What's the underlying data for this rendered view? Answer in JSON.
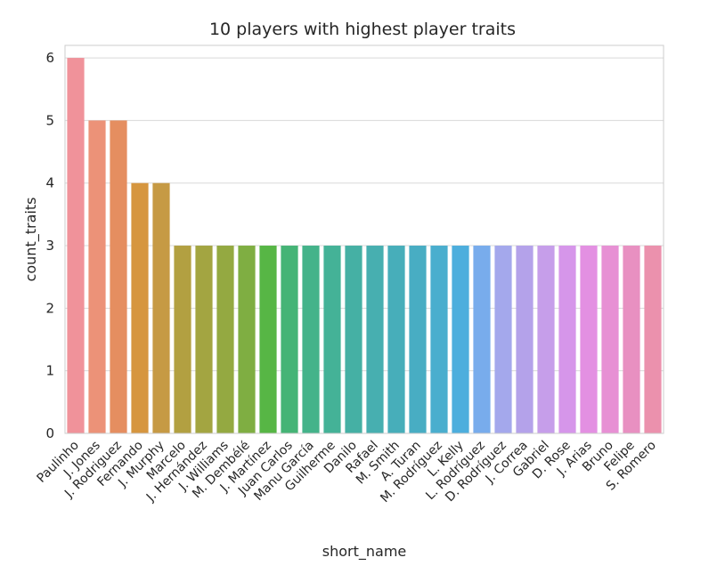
{
  "chart_data": {
    "type": "bar",
    "title": "10 players with highest player traits",
    "xlabel": "short_name",
    "ylabel": "count_traits",
    "ylim": [
      0,
      6.2
    ],
    "yticks": [
      0,
      1,
      2,
      3,
      4,
      5,
      6
    ],
    "grid": "horizontal",
    "categories": [
      "Paulinho",
      "J. Jones",
      "J. Rodriguez",
      "Fernando",
      "J. Murphy",
      "Marcelo",
      "J. Hernández",
      "J. Williams",
      "M. Dembélé",
      "J. Martínez",
      "Juan Carlos",
      "Manu García",
      "Guilherme",
      "Danilo",
      "Rafael",
      "M. Smith",
      "A. Turan",
      "M. Rodríguez",
      "L. Kelly",
      "L. Rodríguez",
      "D. Rodríguez",
      "J. Correa",
      "Gabriel",
      "D. Rose",
      "J. Arias",
      "Bruno",
      "Felipe",
      "S. Romero"
    ],
    "values": [
      6,
      5,
      5,
      4,
      4,
      3,
      3,
      3,
      3,
      3,
      3,
      3,
      3,
      3,
      3,
      3,
      3,
      3,
      3,
      3,
      3,
      3,
      3,
      3,
      3,
      3,
      3,
      3
    ],
    "colors": [
      "#f0929a",
      "#ec9278",
      "#e58e60",
      "#d6963f",
      "#c69a44",
      "#b2a041",
      "#a3a541",
      "#94a941",
      "#7fae42",
      "#57b645",
      "#45b476",
      "#44b38a",
      "#44b297",
      "#45b0a4",
      "#47afb0",
      "#47aeba",
      "#48adc3",
      "#4aaece",
      "#4daedd",
      "#78acec",
      "#a4a8ec",
      "#b4a2ea",
      "#c69eea",
      "#d696ea",
      "#e390e2",
      "#e790d4",
      "#e890c1",
      "#eb91ad"
    ]
  }
}
